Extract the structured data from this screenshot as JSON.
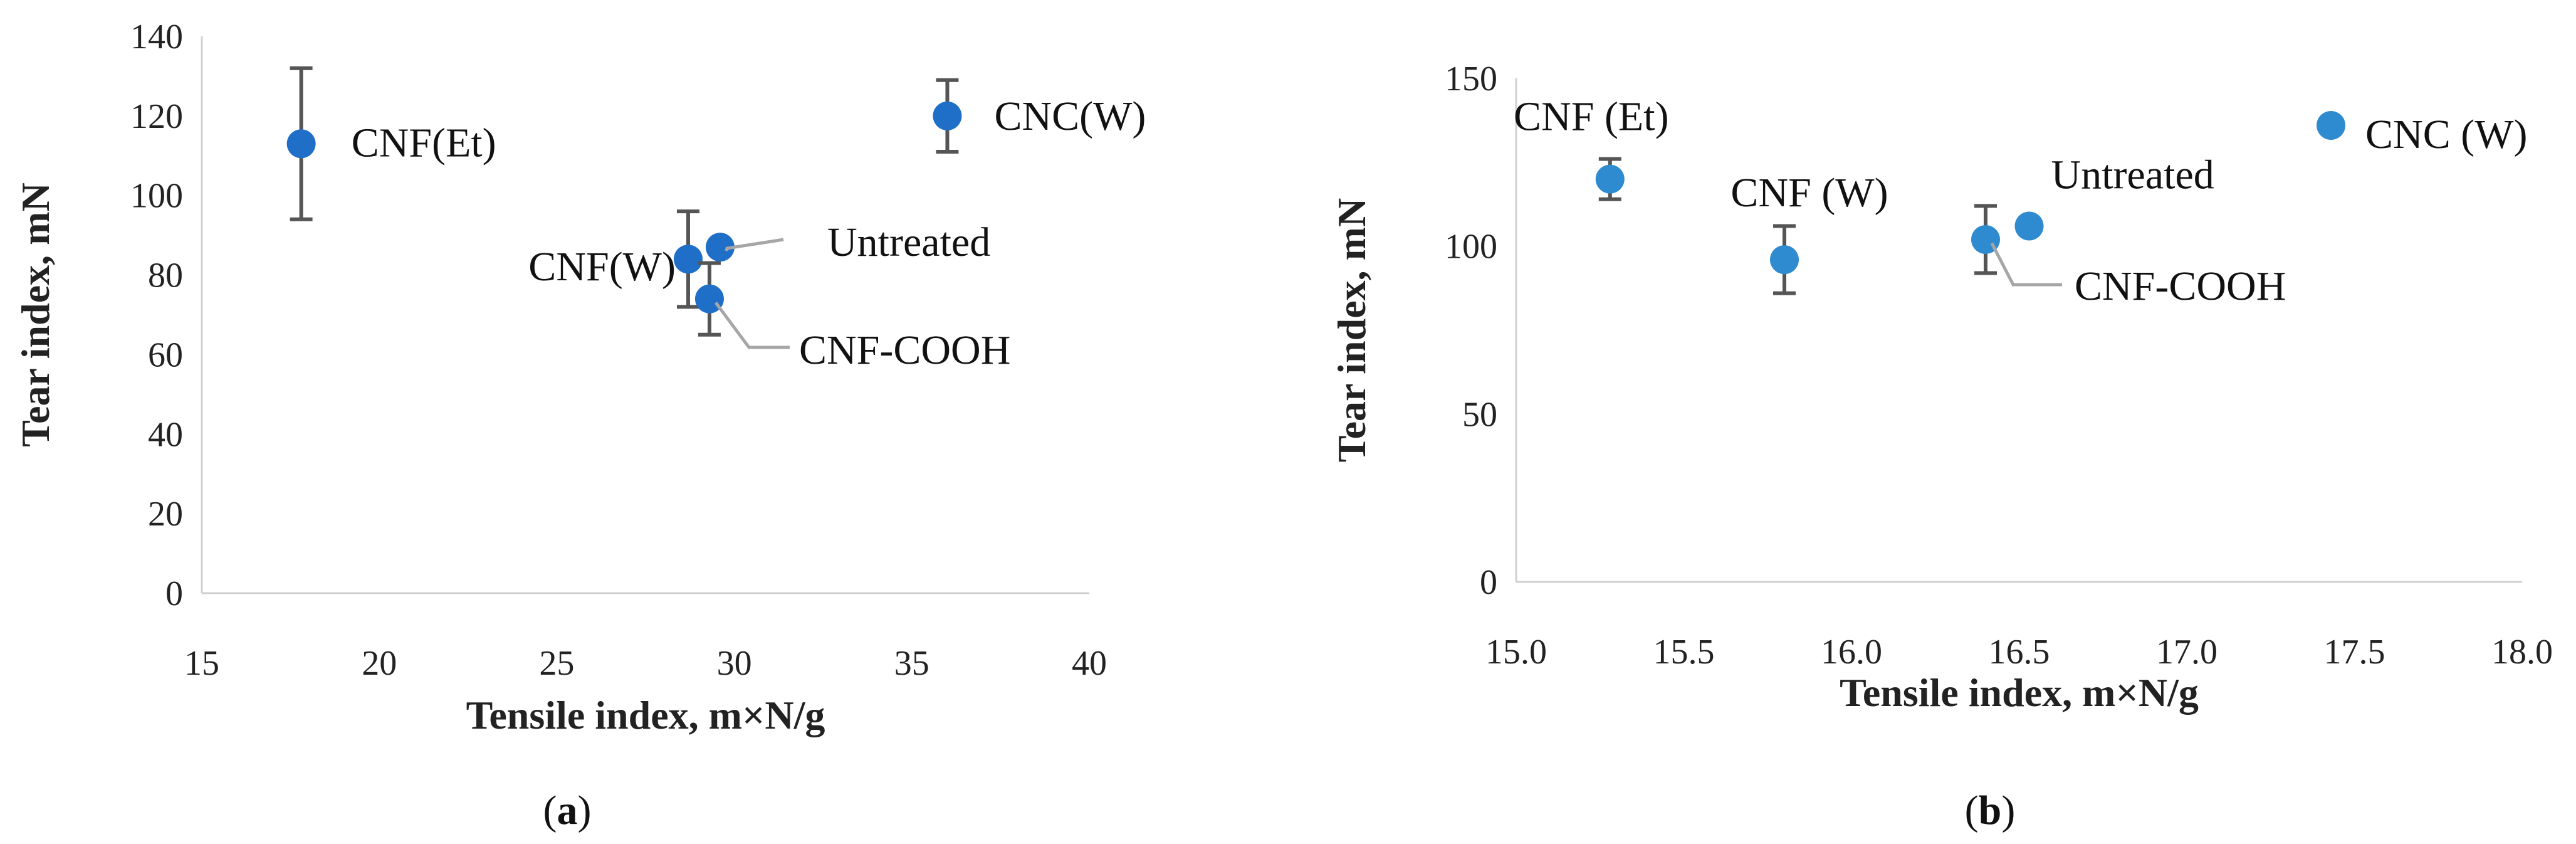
{
  "chart_data": [
    {
      "type": "scatter",
      "panel": "a",
      "xlabel": "Tensile index,  m×N/g",
      "ylabel": "Tear index, mN",
      "xlim": [
        15,
        40
      ],
      "ylim": [
        0,
        140
      ],
      "xticks": [
        "15",
        "20",
        "25",
        "30",
        "35",
        "40"
      ],
      "yticks": [
        "0",
        "20",
        "40",
        "60",
        "80",
        "100",
        "120",
        "140"
      ],
      "marker_color": "#1f6fc8",
      "points": [
        {
          "label": "CNF(Et)",
          "x": 17.8,
          "y": 113,
          "err": 19
        },
        {
          "label": "CNC(W)",
          "x": 36.0,
          "y": 120,
          "err": 9
        },
        {
          "label": "CNF(W)",
          "x": 28.7,
          "y": 84,
          "err": 12
        },
        {
          "label": "Untreated",
          "x": 29.6,
          "y": 87,
          "err": 0
        },
        {
          "label": "CNF-COOH",
          "x": 29.3,
          "y": 74,
          "err": 9
        }
      ]
    },
    {
      "type": "scatter",
      "panel": "b",
      "xlabel": "Tensile index,  m×N/g",
      "ylabel": "Tear index, mN",
      "xlim": [
        15.0,
        18.0
      ],
      "ylim": [
        0,
        150
      ],
      "xticks": [
        "15.0",
        "15.5",
        "16.0",
        "16.5",
        "17.0",
        "17.5",
        "18.0"
      ],
      "yticks": [
        "0",
        "50",
        "100",
        "150"
      ],
      "marker_color": "#2e8bd0",
      "points": [
        {
          "label": "CNF (Et)",
          "x": 15.28,
          "y": 120,
          "err": 6
        },
        {
          "label": "CNF (W)",
          "x": 15.8,
          "y": 96,
          "err": 10
        },
        {
          "label": "CNF-COOH",
          "x": 16.4,
          "y": 102,
          "err": 10
        },
        {
          "label": "Untreated",
          "x": 16.53,
          "y": 106,
          "err": 0
        },
        {
          "label": "CNC (W)",
          "x": 17.43,
          "y": 136,
          "err": 0
        }
      ]
    }
  ],
  "captions": {
    "a_open": "(",
    "a_letter": "a",
    "a_close": ")",
    "b_open": "(",
    "b_letter": "b",
    "b_close": ")"
  }
}
